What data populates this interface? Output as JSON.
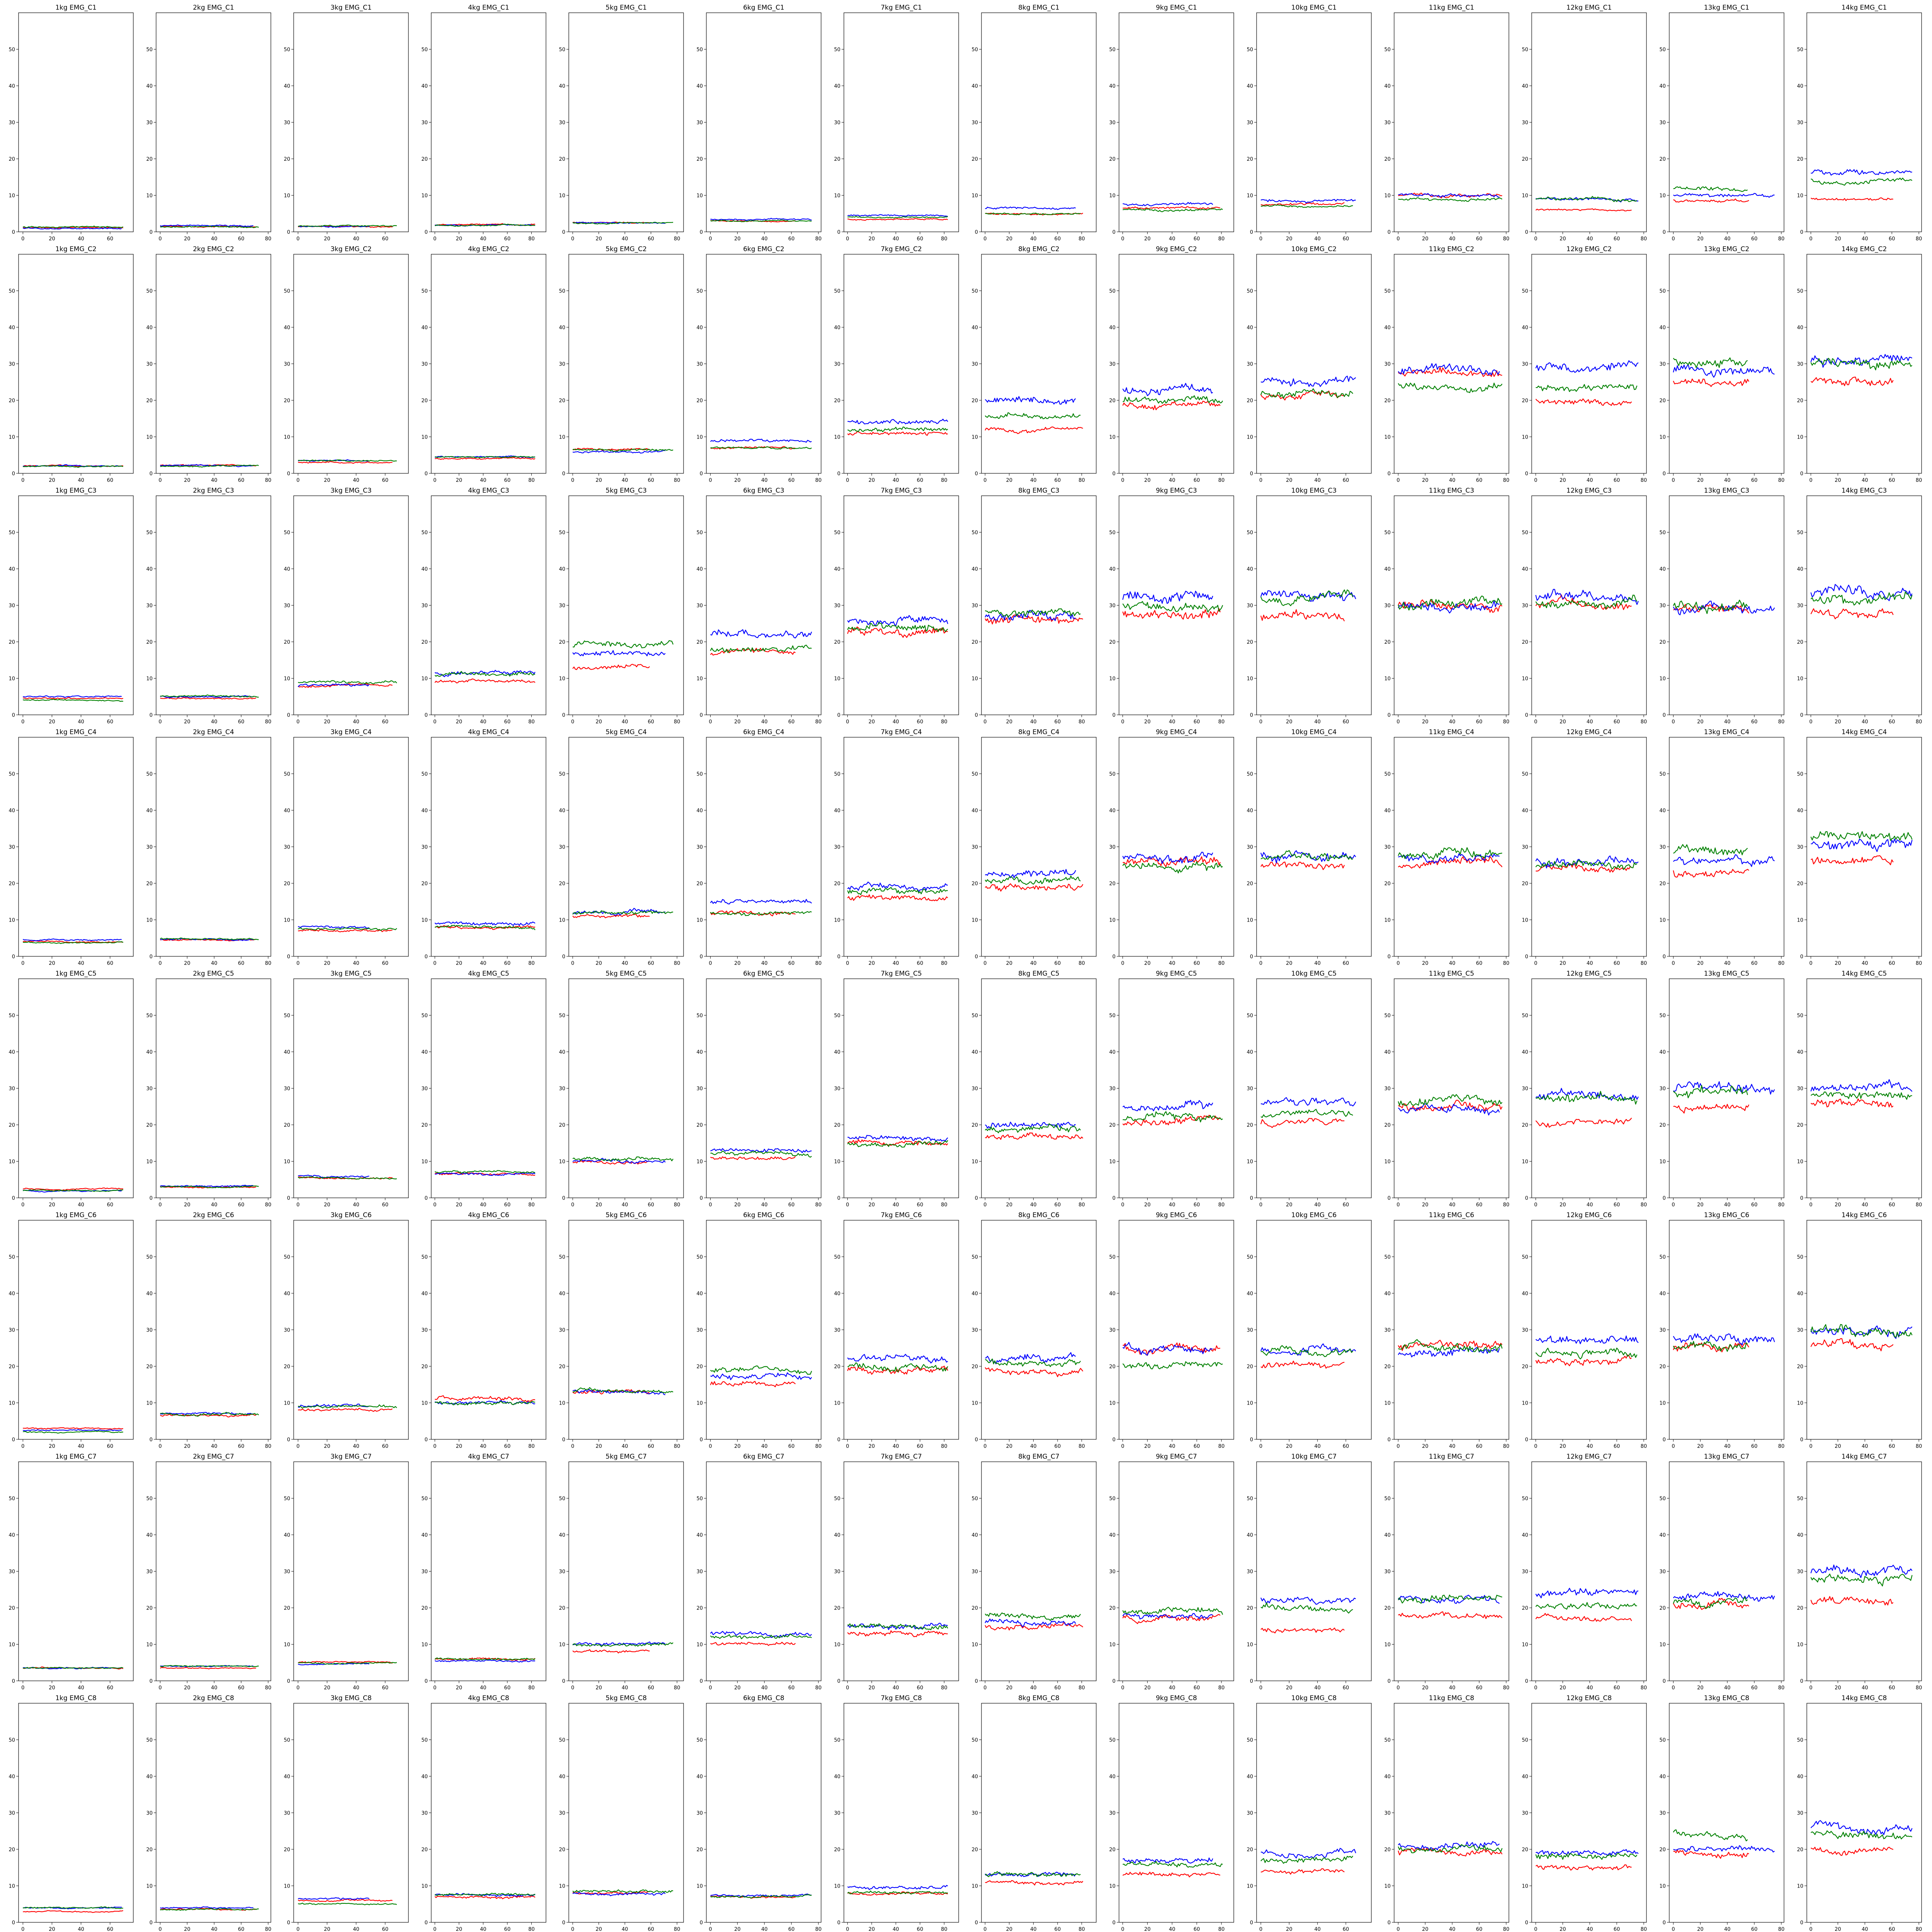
{
  "colors": {
    "red": "#ff0000",
    "blue": "#0000ff",
    "green": "#008000"
  },
  "chart_data": {
    "type": "line",
    "layout": "8 rows x 14 columns small-multiples grid",
    "grid": false,
    "ylim": [
      0,
      60
    ],
    "yticks": [
      0,
      10,
      20,
      30,
      40,
      50
    ],
    "xticks": [
      0,
      20,
      40,
      60,
      80
    ],
    "series_colors": [
      "#ff0000",
      "#0000ff",
      "#008000"
    ],
    "channels": [
      "C1",
      "C2",
      "C3",
      "C4",
      "C5",
      "C6",
      "C7",
      "C8"
    ],
    "loads": [
      "1kg",
      "2kg",
      "3kg",
      "4kg",
      "5kg",
      "6kg",
      "7kg",
      "8kg",
      "9kg",
      "10kg",
      "11kg",
      "12kg",
      "13kg",
      "14kg"
    ],
    "xlim_per_load": [
      [
        -3,
        76
      ],
      [
        -3,
        82
      ],
      [
        -3,
        76
      ],
      [
        -3,
        92
      ],
      [
        -3,
        85
      ],
      [
        -3,
        82
      ],
      [
        -3,
        92
      ],
      [
        -3,
        92
      ],
      [
        -3,
        90
      ],
      [
        -3,
        78
      ],
      [
        -3,
        82
      ],
      [
        -3,
        82
      ],
      [
        -3,
        82
      ],
      [
        -3,
        82
      ]
    ],
    "samples_per_load": [
      [
        70,
        69,
        70
      ],
      [
        72,
        70,
        74
      ],
      [
        66,
        50,
        69
      ],
      [
        84,
        84,
        84
      ],
      [
        60,
        72,
        78
      ],
      [
        64,
        76,
        76
      ],
      [
        84,
        84,
        84
      ],
      [
        82,
        76,
        80
      ],
      [
        80,
        74,
        82
      ],
      [
        60,
        68,
        66
      ],
      [
        78,
        76,
        78
      ],
      [
        72,
        77,
        76
      ],
      [
        57,
        76,
        56
      ],
      [
        62,
        76,
        76
      ]
    ],
    "mean_levels_red_blue_green": {
      "C1": [
        [
          1.2,
          1.0,
          1.4
        ],
        [
          1.5,
          1.7,
          1.4
        ],
        [
          1.5,
          1.5,
          1.6
        ],
        [
          2.0,
          1.8,
          1.8
        ],
        [
          2.5,
          2.5,
          2.5
        ],
        [
          3.0,
          3.5,
          3.0
        ],
        [
          3.5,
          4.5,
          4.0
        ],
        [
          5.0,
          6.5,
          5.0
        ],
        [
          6.5,
          7.5,
          6.0
        ],
        [
          7.5,
          8.5,
          7.0
        ],
        [
          10.0,
          10.0,
          9.0
        ],
        [
          6.0,
          9.0,
          9.0
        ],
        [
          8.5,
          10.0,
          12.0
        ],
        [
          9.0,
          16.0,
          14.0
        ]
      ],
      "C2": [
        [
          2.0,
          2.0,
          2.0
        ],
        [
          2.2,
          2.2,
          2.0
        ],
        [
          3.0,
          3.5,
          3.5
        ],
        [
          4.0,
          4.5,
          4.5
        ],
        [
          6.5,
          6.0,
          6.5
        ],
        [
          7.0,
          9.0,
          7.0
        ],
        [
          11.0,
          14.0,
          12.0
        ],
        [
          12.0,
          20.0,
          16.0
        ],
        [
          19.0,
          23.0,
          20.0
        ],
        [
          21.0,
          25.0,
          22.0
        ],
        [
          27.0,
          28.0,
          24.0
        ],
        [
          20.0,
          29.0,
          23.0
        ],
        [
          25.0,
          28.0,
          31.0
        ],
        [
          25.0,
          31.0,
          30.0
        ]
      ],
      "C3": [
        [
          4.5,
          5.0,
          4.0
        ],
        [
          4.5,
          5.0,
          5.0
        ],
        [
          8.0,
          8.0,
          9.0
        ],
        [
          9.0,
          11.5,
          11.0
        ],
        [
          13.0,
          17.0,
          19.0
        ],
        [
          17.0,
          22.0,
          18.0
        ],
        [
          23.0,
          26.0,
          24.0
        ],
        [
          26.0,
          27.0,
          28.0
        ],
        [
          28.0,
          32.0,
          30.0
        ],
        [
          27.0,
          33.0,
          32.0
        ],
        [
          30.0,
          30.0,
          30.0
        ],
        [
          30.0,
          32.0,
          31.0
        ],
        [
          29.0,
          29.0,
          30.0
        ],
        [
          28.0,
          33.0,
          32.0
        ]
      ],
      "C4": [
        [
          4.0,
          4.5,
          3.8
        ],
        [
          4.5,
          4.5,
          4.8
        ],
        [
          7.0,
          8.0,
          7.5
        ],
        [
          8.0,
          9.0,
          8.0
        ],
        [
          11.0,
          12.0,
          12.0
        ],
        [
          12.0,
          15.0,
          12.0
        ],
        [
          16.0,
          19.0,
          18.0
        ],
        [
          19.0,
          23.0,
          21.0
        ],
        [
          26.0,
          27.0,
          25.0
        ],
        [
          25.0,
          28.0,
          27.0
        ],
        [
          25.0,
          27.0,
          28.0
        ],
        [
          24.0,
          26.0,
          25.0
        ],
        [
          23.0,
          26.0,
          29.0
        ],
        [
          26.0,
          31.0,
          32.0
        ]
      ],
      "C5": [
        [
          2.5,
          2.0,
          2.0
        ],
        [
          3.0,
          3.2,
          3.0
        ],
        [
          5.5,
          6.0,
          5.5
        ],
        [
          6.5,
          6.5,
          7.0
        ],
        [
          9.5,
          10.0,
          10.5
        ],
        [
          11.0,
          13.0,
          12.0
        ],
        [
          15.0,
          16.0,
          15.0
        ],
        [
          17.0,
          20.0,
          19.0
        ],
        [
          21.0,
          25.0,
          22.0
        ],
        [
          21.0,
          26.0,
          23.0
        ],
        [
          25.0,
          25.0,
          26.0
        ],
        [
          21.0,
          28.0,
          27.0
        ],
        [
          25.0,
          30.0,
          29.0
        ],
        [
          26.0,
          30.0,
          28.0
        ]
      ],
      "C6": [
        [
          3.0,
          2.5,
          2.0
        ],
        [
          6.5,
          7.0,
          7.0
        ],
        [
          8.0,
          9.0,
          9.0
        ],
        [
          11.0,
          10.0,
          10.0
        ],
        [
          13.0,
          13.0,
          13.0
        ],
        [
          15.0,
          17.0,
          19.0
        ],
        [
          19.0,
          22.0,
          20.0
        ],
        [
          19.0,
          22.0,
          21.0
        ],
        [
          25.0,
          25.0,
          20.0
        ],
        [
          20.0,
          25.0,
          24.0
        ],
        [
          26.0,
          24.0,
          25.0
        ],
        [
          22.0,
          27.0,
          24.0
        ],
        [
          25.0,
          28.0,
          26.0
        ],
        [
          26.0,
          30.0,
          30.0
        ]
      ],
      "C7": [
        [
          3.5,
          3.5,
          3.5
        ],
        [
          3.5,
          4.0,
          4.0
        ],
        [
          5.0,
          4.5,
          5.0
        ],
        [
          6.0,
          5.5,
          6.0
        ],
        [
          8.0,
          10.0,
          10.0
        ],
        [
          10.0,
          13.0,
          12.0
        ],
        [
          13.0,
          15.0,
          15.0
        ],
        [
          15.0,
          16.0,
          18.0
        ],
        [
          17.0,
          18.0,
          19.0
        ],
        [
          14.0,
          22.0,
          20.0
        ],
        [
          18.0,
          22.0,
          22.0
        ],
        [
          17.0,
          24.0,
          21.0
        ],
        [
          21.0,
          23.0,
          22.0
        ],
        [
          22.0,
          30.0,
          28.0
        ]
      ],
      "C8": [
        [
          3.0,
          4.0,
          4.0
        ],
        [
          3.5,
          4.0,
          3.5
        ],
        [
          6.0,
          6.5,
          5.0
        ],
        [
          7.0,
          7.5,
          7.5
        ],
        [
          8.0,
          8.0,
          8.5
        ],
        [
          7.0,
          7.5,
          7.0
        ],
        [
          8.0,
          9.5,
          8.0
        ],
        [
          11.0,
          13.0,
          13.0
        ],
        [
          13.0,
          17.0,
          16.0
        ],
        [
          14.0,
          19.0,
          17.0
        ],
        [
          19.0,
          21.0,
          20.0
        ],
        [
          15.0,
          19.0,
          18.0
        ],
        [
          19.0,
          20.0,
          24.0
        ],
        [
          20.0,
          26.0,
          24.0
        ]
      ]
    }
  }
}
